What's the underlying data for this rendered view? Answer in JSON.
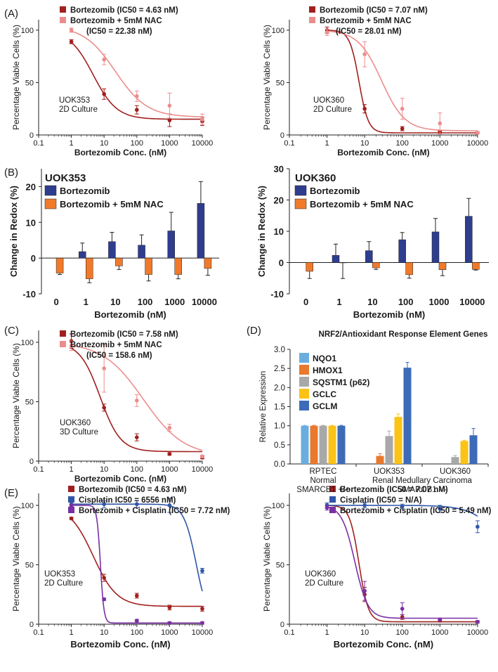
{
  "panel_labels": [
    "(A)",
    "(B)",
    "(C)",
    "(D)",
    "(E)"
  ],
  "colors": {
    "dark_red": "#a0201e",
    "light_red": "#ec8d8d",
    "navy": "#2f3d8f",
    "orange": "#f07a2a",
    "purple": "#7a2fa3",
    "nqo1": "#6aaee0",
    "hmox1": "#e9792c",
    "sqstm1": "#a8a8a8",
    "gclc": "#fbc217",
    "gclm": "#3d6bb8"
  },
  "chart_data": [
    {
      "id": "A-left",
      "type": "line",
      "title": "",
      "xlabel": "Bortezomib Conc. (nM)",
      "ylabel": "Percentage Viable Cells (%)",
      "xscale": "log",
      "xlim": [
        0.1,
        20000
      ],
      "ylim": [
        0,
        110
      ],
      "x_ticks": [
        0.1,
        1,
        10,
        100,
        1000,
        10000
      ],
      "x_tick_labels": [
        "0.1",
        "1",
        "10",
        "100",
        "1000",
        "10000"
      ],
      "y_ticks": [
        0,
        50,
        100
      ],
      "y_tick_labels": [
        "0",
        "50",
        "100"
      ],
      "annotation": [
        "UOK353",
        "2D Culture"
      ],
      "legend_note": "(IC50 = 22.38 nM)",
      "legend": [
        "Bortezomib (IC50 = 4.63 nM)",
        "Bortezomib + 5mM NAC"
      ],
      "series": [
        {
          "name": "Bortezomib (IC50 = 4.63 nM)",
          "color": "#a0201e",
          "x": [
            1,
            10,
            100,
            1000,
            10000
          ],
          "y": [
            89,
            39,
            24,
            14,
            13
          ],
          "err": [
            2,
            5,
            4,
            6,
            4
          ],
          "fit": {
            "bottom": 15,
            "top": 100,
            "ic50": 4.63,
            "hill": 1.2
          }
        },
        {
          "name": "Bortezomib + 5mM NAC",
          "color": "#ec8d8d",
          "x": [
            1,
            10,
            100,
            1000,
            10000
          ],
          "y": [
            100,
            72,
            37,
            28,
            15
          ],
          "err": [
            2,
            5,
            5,
            12,
            5
          ],
          "fit": {
            "bottom": 17,
            "top": 104,
            "ic50": 22.38,
            "hill": 0.9
          }
        }
      ]
    },
    {
      "id": "A-right",
      "type": "line",
      "title": "",
      "xlabel": "Bortezomib Conc. (nM)",
      "ylabel": "Percentage Viable Cells (%)",
      "xscale": "log",
      "xlim": [
        0.1,
        20000
      ],
      "ylim": [
        0,
        110
      ],
      "x_ticks": [
        0.1,
        1,
        10,
        100,
        1000,
        10000
      ],
      "x_tick_labels": [
        "0.1",
        "1",
        "10",
        "100",
        "1000",
        "10000"
      ],
      "y_ticks": [
        0,
        50,
        100
      ],
      "y_tick_labels": [
        "0",
        "50",
        "100"
      ],
      "annotation": [
        "UOK360",
        "2D Culture"
      ],
      "legend_note": "(IC50 = 28.01 nM)",
      "legend": [
        "Bortezomib (IC50 = 7.07 nM)",
        "Bortezomib + 5mM NAC"
      ],
      "series": [
        {
          "name": "Bortezomib (IC50 = 7.07 nM)",
          "color": "#a0201e",
          "x": [
            1,
            10,
            100,
            1000,
            10000
          ],
          "y": [
            100,
            25,
            6,
            3,
            2
          ],
          "err": [
            3,
            4,
            2,
            1,
            1
          ],
          "fit": {
            "bottom": 2,
            "top": 100,
            "ic50": 7.07,
            "hill": 3.5
          }
        },
        {
          "name": "Bortezomib + 5mM NAC",
          "color": "#ec8d8d",
          "x": [
            1,
            10,
            100,
            1000,
            10000
          ],
          "y": [
            98,
            77,
            25,
            11,
            2
          ],
          "err": [
            3,
            12,
            10,
            10,
            1
          ],
          "fit": {
            "bottom": 4,
            "top": 100,
            "ic50": 28.01,
            "hill": 1.4
          }
        }
      ]
    },
    {
      "id": "B-left",
      "type": "bar",
      "title": "UOK353",
      "xlabel": "Bortezomib (nM)",
      "ylabel": "Change in Redox (%)",
      "categories": [
        "0",
        "1",
        "10",
        "100",
        "1000",
        "10000"
      ],
      "ylim": [
        -10,
        25
      ],
      "y_ticks": [
        -10,
        0,
        10,
        20
      ],
      "y_tick_labels": [
        "-10",
        "0",
        "10",
        "20"
      ],
      "legend": [
        "Bortezomib",
        "Bortezomib + 5mM NAC"
      ],
      "series": [
        {
          "name": "Bortezomib",
          "color": "#2f3d8f",
          "values": [
            0,
            1.8,
            4.6,
            3.6,
            7.6,
            15.3
          ],
          "err": [
            0,
            2.4,
            2.6,
            2.9,
            5.2,
            6.1
          ]
        },
        {
          "name": "Bortezomib + 5mM NAC",
          "color": "#f07a2a",
          "values": [
            -4.2,
            -5.8,
            -2.2,
            -4.6,
            -4.6,
            -2.9
          ],
          "err": [
            0.4,
            1.1,
            1.0,
            1.8,
            1.2,
            1.9
          ]
        }
      ]
    },
    {
      "id": "B-right",
      "type": "bar",
      "title": "UOK360",
      "xlabel": "Bortezomib (nM)",
      "ylabel": "Change in Redox (%)",
      "categories": [
        "0",
        "1",
        "10",
        "100",
        "1000",
        "10000"
      ],
      "ylim": [
        -10,
        30
      ],
      "y_ticks": [
        -10,
        0,
        10,
        20,
        30
      ],
      "y_tick_labels": [
        "-10",
        "0",
        "10",
        "20",
        "30"
      ],
      "legend": [
        "Bortezomib",
        "Bortezomib + 5mM NAC"
      ],
      "series": [
        {
          "name": "Bortezomib",
          "color": "#2f3d8f",
          "values": [
            0,
            2.3,
            3.8,
            7.3,
            9.8,
            14.8
          ],
          "err": [
            0,
            3.6,
            2.9,
            2.3,
            4.3,
            5.7
          ]
        },
        {
          "name": "Bortezomib + 5mM NAC",
          "color": "#f07a2a",
          "values": [
            -2.8,
            -0.1,
            -1.7,
            -3.9,
            -2.3,
            -2.2
          ],
          "err": [
            2.3,
            5.0,
            0.5,
            1.1,
            1.9,
            0.2
          ]
        }
      ]
    },
    {
      "id": "C",
      "type": "line",
      "title": "",
      "xlabel": "Bortezomib Conc. (nM)",
      "ylabel": "Percentage Viable Cells (%)",
      "xscale": "log",
      "xlim": [
        0.1,
        20000
      ],
      "ylim": [
        0,
        110
      ],
      "x_ticks": [
        0.1,
        1,
        10,
        100,
        1000,
        10000
      ],
      "x_tick_labels": [
        "0.1",
        "1",
        "10",
        "100",
        "1000",
        "10000"
      ],
      "y_ticks": [
        0,
        50,
        100
      ],
      "y_tick_labels": [
        "0",
        "50",
        "100"
      ],
      "annotation": [
        "UOK360",
        "3D Culture"
      ],
      "legend_note": "(IC50 = 158.6 nM)",
      "legend": [
        "Bortezomib (IC50 = 7.58 nM)",
        "Bortezomib + 5mM NAC"
      ],
      "series": [
        {
          "name": "Bortezomib (IC50 = 7.58 nM)",
          "color": "#a0201e",
          "x": [
            1,
            10,
            100,
            1000,
            10000
          ],
          "y": [
            101,
            45,
            20,
            6,
            3
          ],
          "err": [
            6,
            3,
            3,
            1,
            1
          ],
          "fit": {
            "bottom": 8,
            "top": 100,
            "ic50": 7.58,
            "hill": 1.4
          }
        },
        {
          "name": "Bortezomib + 5mM NAC",
          "color": "#ec8d8d",
          "x": [
            1,
            10,
            100,
            1000,
            10000
          ],
          "y": [
            97,
            78,
            51,
            28,
            4
          ],
          "err": [
            4,
            20,
            5,
            3,
            1
          ],
          "fit": {
            "bottom": 4,
            "top": 100,
            "ic50": 158.6,
            "hill": 0.7
          }
        }
      ]
    },
    {
      "id": "D",
      "type": "bar",
      "title": "NRF2/Antioxidant Response Element Genes",
      "xlabel": "",
      "ylabel": "Relative Expression",
      "categories": [
        [
          "RPTEC",
          "Normal",
          "SMARCB1 +/+"
        ],
        [
          "UOK353",
          "",
          ""
        ],
        [
          "UOK360",
          "",
          ""
        ]
      ],
      "group_span_label": [
        "Renal Medullary Carcinoma",
        "SMARCB1 -/-"
      ],
      "ylim": [
        0,
        3.0
      ],
      "y_ticks": [
        0,
        0.5,
        1.0,
        1.5,
        2.0,
        2.5,
        3.0
      ],
      "y_tick_labels": [
        "0.0",
        "0.5",
        "1.0",
        "1.5",
        "2.0",
        "2.5",
        "3.0"
      ],
      "legend": [
        "NQO1",
        "HMOX1",
        "SQSTM1 (p62)",
        "GCLC",
        "GCLM"
      ],
      "series": [
        {
          "name": "NQO1",
          "color": "#6aaee0",
          "values": [
            1.0,
            0.0,
            0.0
          ],
          "err": [
            0.01,
            0,
            0
          ]
        },
        {
          "name": "HMOX1",
          "color": "#e9792c",
          "values": [
            1.0,
            0.21,
            0.0
          ],
          "err": [
            0.01,
            0.06,
            0
          ]
        },
        {
          "name": "SQSTM1 (p62)",
          "color": "#a8a8a8",
          "values": [
            1.0,
            0.73,
            0.18
          ],
          "err": [
            0.01,
            0.13,
            0.04
          ]
        },
        {
          "name": "GCLC",
          "color": "#fbc217",
          "values": [
            1.0,
            1.23,
            0.6
          ],
          "err": [
            0.01,
            0.08,
            0.02
          ]
        },
        {
          "name": "GCLM",
          "color": "#3d6bb8",
          "values": [
            1.0,
            2.52,
            0.75
          ],
          "err": [
            0.01,
            0.14,
            0.18
          ]
        }
      ]
    },
    {
      "id": "E-left",
      "type": "line",
      "title": "",
      "xlabel": "Bortezomib Conc. (nM)",
      "ylabel": "Percentage Viable Cells (%)",
      "xscale": "log",
      "xlim": [
        0.1,
        20000
      ],
      "ylim": [
        0,
        110
      ],
      "x_ticks": [
        0.1,
        1,
        10,
        100,
        1000,
        10000
      ],
      "x_tick_labels": [
        "0.1",
        "1",
        "10",
        "100",
        "1000",
        "10000"
      ],
      "y_ticks": [
        0,
        50,
        100
      ],
      "y_tick_labels": [
        "0",
        "50",
        "100"
      ],
      "annotation": [
        "UOK353",
        "2D Culture"
      ],
      "legend": [
        "Bortezomib (IC50 = 4.63 nM)",
        "Cisplatin IC50 = 6556 nM)",
        "Bortezomib + Cisplatin (IC50 = 7.72 nM)"
      ],
      "series": [
        {
          "name": "Bortezomib (IC50 = 4.63 nM)",
          "color": "#a0201e",
          "x": [
            1,
            10,
            100,
            1000,
            10000
          ],
          "y": [
            89,
            39,
            24,
            14,
            13
          ],
          "err": [
            1,
            3,
            2,
            2,
            2
          ],
          "fit": {
            "bottom": 15,
            "top": 100,
            "ic50": 4.63,
            "hill": 1.2
          }
        },
        {
          "name": "Cisplatin IC50 = 6556 nM)",
          "color": "#2f56a8",
          "x": [
            1,
            10,
            100,
            1000,
            10000
          ],
          "y": [
            101,
            101,
            101,
            100,
            45
          ],
          "err": [
            3,
            3,
            3,
            6,
            2
          ],
          "fit": {
            "bottom": 0,
            "top": 101,
            "ic50": 6556,
            "hill": 2.3
          }
        },
        {
          "name": "Bortezomib + Cisplatin (IC50 = 7.72 nM)",
          "color": "#7a2fa3",
          "x": [
            1,
            10,
            100,
            1000,
            10000
          ],
          "y": [
            100,
            21,
            3,
            1,
            1
          ],
          "err": [
            1,
            1,
            1,
            1,
            1
          ],
          "fit": {
            "bottom": 1,
            "top": 100,
            "ic50": 7.72,
            "hill": 8
          }
        }
      ]
    },
    {
      "id": "E-right",
      "type": "line",
      "title": "",
      "xlabel": "Bortezomib Conc. (nM)",
      "ylabel": "Percentage Viable Cells (%)",
      "xscale": "log",
      "xlim": [
        0.1,
        20000
      ],
      "ylim": [
        0,
        110
      ],
      "x_ticks": [
        0.1,
        1,
        10,
        100,
        1000,
        10000
      ],
      "x_tick_labels": [
        "0.1",
        "1",
        "10",
        "100",
        "1000",
        "10000"
      ],
      "y_ticks": [
        0,
        50,
        100
      ],
      "y_tick_labels": [
        "0",
        "50",
        "100"
      ],
      "annotation": [
        "UOK360",
        "2D Culture"
      ],
      "legend": [
        "Bortezomib (IC50 = 7.07 nM)",
        "Cisplatin (IC50 = N/A)",
        "Bortezomib + Cisplatin (IC50 = 5.49 nM)"
      ],
      "series": [
        {
          "name": "Bortezomib (IC50 = 7.07 nM)",
          "color": "#a0201e",
          "x": [
            1,
            10,
            100,
            1000,
            10000
          ],
          "y": [
            100,
            25,
            6,
            3,
            2
          ],
          "err": [
            2,
            6,
            2,
            1,
            1
          ],
          "fit": {
            "bottom": 2,
            "top": 100,
            "ic50": 7.07,
            "hill": 3.5
          }
        },
        {
          "name": "Cisplatin (IC50 = N/A)",
          "color": "#2f56a8",
          "x": [
            1,
            10,
            100,
            1000,
            10000
          ],
          "y": [
            100,
            100,
            99,
            97,
            82
          ],
          "err": [
            2,
            2,
            2,
            3,
            5
          ],
          "fit": {
            "bottom": 0,
            "top": 100,
            "ic50": 80000,
            "hill": 1.1
          }
        },
        {
          "name": "Bortezomib + Cisplatin (IC50 = 5.49 nM)",
          "color": "#7a2fa3",
          "x": [
            1,
            10,
            100,
            1000,
            10000
          ],
          "y": [
            98,
            28,
            13,
            4,
            2
          ],
          "err": [
            2,
            8,
            5,
            1,
            1
          ],
          "fit": {
            "bottom": 5,
            "top": 100,
            "ic50": 5.49,
            "hill": 2.5
          }
        }
      ]
    }
  ]
}
